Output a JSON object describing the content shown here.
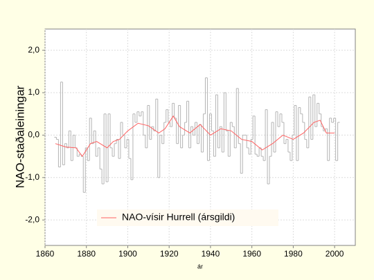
{
  "chart_data": {
    "type": "line",
    "ylabel": "NAO-staðaleiningar",
    "xlabel": "ár",
    "xlim": [
      1860,
      2010
    ],
    "ylim": [
      -2.6,
      2.5
    ],
    "xticks": [
      1860,
      1880,
      1900,
      1920,
      1940,
      1960,
      1980,
      2000
    ],
    "yticks": [
      {
        "value": -2,
        "label": "-2,0"
      },
      {
        "value": -1,
        "label": "-1,0"
      },
      {
        "value": 0,
        "label": "0,0"
      },
      {
        "value": 1,
        "label": "1,0"
      },
      {
        "value": 2,
        "label": "2,0"
      }
    ],
    "grid": true,
    "legend": "lower left",
    "series": [
      {
        "color": "#b4b4b4",
        "step": true,
        "x": [
          1865,
          1866,
          1867,
          1868,
          1869,
          1870,
          1871,
          1872,
          1873,
          1874,
          1875,
          1876,
          1877,
          1878,
          1879,
          1880,
          1881,
          1882,
          1883,
          1884,
          1885,
          1886,
          1887,
          1888,
          1889,
          1890,
          1891,
          1892,
          1893,
          1894,
          1895,
          1896,
          1897,
          1898,
          1899,
          1900,
          1901,
          1902,
          1903,
          1904,
          1905,
          1906,
          1907,
          1908,
          1909,
          1910,
          1911,
          1912,
          1913,
          1914,
          1915,
          1916,
          1917,
          1918,
          1919,
          1920,
          1921,
          1922,
          1923,
          1924,
          1925,
          1926,
          1927,
          1928,
          1929,
          1930,
          1931,
          1932,
          1933,
          1934,
          1935,
          1936,
          1937,
          1938,
          1939,
          1940,
          1941,
          1942,
          1943,
          1944,
          1945,
          1946,
          1947,
          1948,
          1949,
          1950,
          1951,
          1952,
          1953,
          1954,
          1955,
          1956,
          1957,
          1958,
          1959,
          1960,
          1961,
          1962,
          1963,
          1964,
          1965,
          1966,
          1967,
          1968,
          1969,
          1970,
          1971,
          1972,
          1973,
          1974,
          1975,
          1976,
          1977,
          1978,
          1979,
          1980,
          1981,
          1982,
          1983,
          1984,
          1985,
          1986,
          1987,
          1988,
          1989,
          1990,
          1991,
          1992,
          1993,
          1994,
          1995,
          1996,
          1997,
          1998,
          1999,
          2000,
          2001,
          2002
        ],
        "values": [
          -0.05,
          -0.1,
          -0.75,
          1.25,
          -0.7,
          -0.2,
          -0.3,
          0.1,
          -0.6,
          0.0,
          -0.3,
          -0.5,
          -0.45,
          -0.5,
          -1.35,
          -0.3,
          -0.6,
          0.4,
          -0.2,
          0.1,
          -0.5,
          -0.3,
          -0.8,
          -1.15,
          0.5,
          -1.1,
          0.5,
          -0.3,
          -0.5,
          -0.2,
          -0.1,
          -0.55,
          0.3,
          0.0,
          -0.3,
          -0.1,
          -0.55,
          -1.05,
          0.5,
          0.3,
          0.55,
          0.45,
          0.55,
          0.0,
          -0.3,
          0.7,
          -0.1,
          0.2,
          0.1,
          0.85,
          -1.0,
          0.0,
          -0.2,
          0.3,
          0.6,
          0.3,
          0.2,
          0.75,
          0.4,
          -0.2,
          0.7,
          -0.3,
          0.0,
          0.3,
          0.8,
          -0.3,
          0.2,
          0.0,
          0.3,
          -0.2,
          0.25,
          -0.4,
          0.5,
          1.35,
          -0.6,
          0.5,
          0.1,
          -0.5,
          0.95,
          -0.3,
          0.2,
          -0.4,
          1.0,
          0.1,
          -0.5,
          0.3,
          0.2,
          -0.3,
          1.1,
          -0.2,
          -0.9,
          0.0,
          0.0,
          -0.3,
          -0.45,
          -0.1,
          0.45,
          -0.45,
          -0.5,
          -0.3,
          -0.5,
          -0.6,
          0.6,
          -1.15,
          -0.5,
          0.3,
          -0.4,
          0.55,
          0.2,
          0.5,
          0.3,
          -0.2,
          -0.1,
          -0.4,
          -0.6,
          0.0,
          0.7,
          -0.6,
          0.65,
          0.5,
          0.3,
          -0.1,
          -0.3,
          0.9,
          -0.1,
          0.95,
          0.2,
          0.75,
          0.5,
          0.2,
          0.1,
          0.15,
          -0.6,
          0.4,
          0.3,
          0.4,
          -0.6,
          0.3
        ]
      },
      {
        "name": "NAO-vísir Hurrell (ársgildi)",
        "color": "#ff6060",
        "x": [
          1865,
          1870,
          1875,
          1878,
          1882,
          1885,
          1890,
          1893,
          1896,
          1900,
          1905,
          1910,
          1915,
          1918,
          1922,
          1925,
          1930,
          1935,
          1940,
          1945,
          1950,
          1955,
          1960,
          1965,
          1970,
          1975,
          1980,
          1985,
          1990,
          1993,
          1996,
          2000
        ],
        "values": [
          -0.2,
          -0.28,
          -0.3,
          -0.5,
          -0.2,
          -0.15,
          -0.3,
          -0.15,
          -0.1,
          0.1,
          0.28,
          0.22,
          0.05,
          0.15,
          0.45,
          0.2,
          0.05,
          0.25,
          0.0,
          0.15,
          0.1,
          -0.1,
          -0.15,
          -0.35,
          -0.2,
          0.0,
          -0.1,
          0.05,
          0.3,
          0.35,
          0.05,
          0.05
        ]
      }
    ]
  }
}
